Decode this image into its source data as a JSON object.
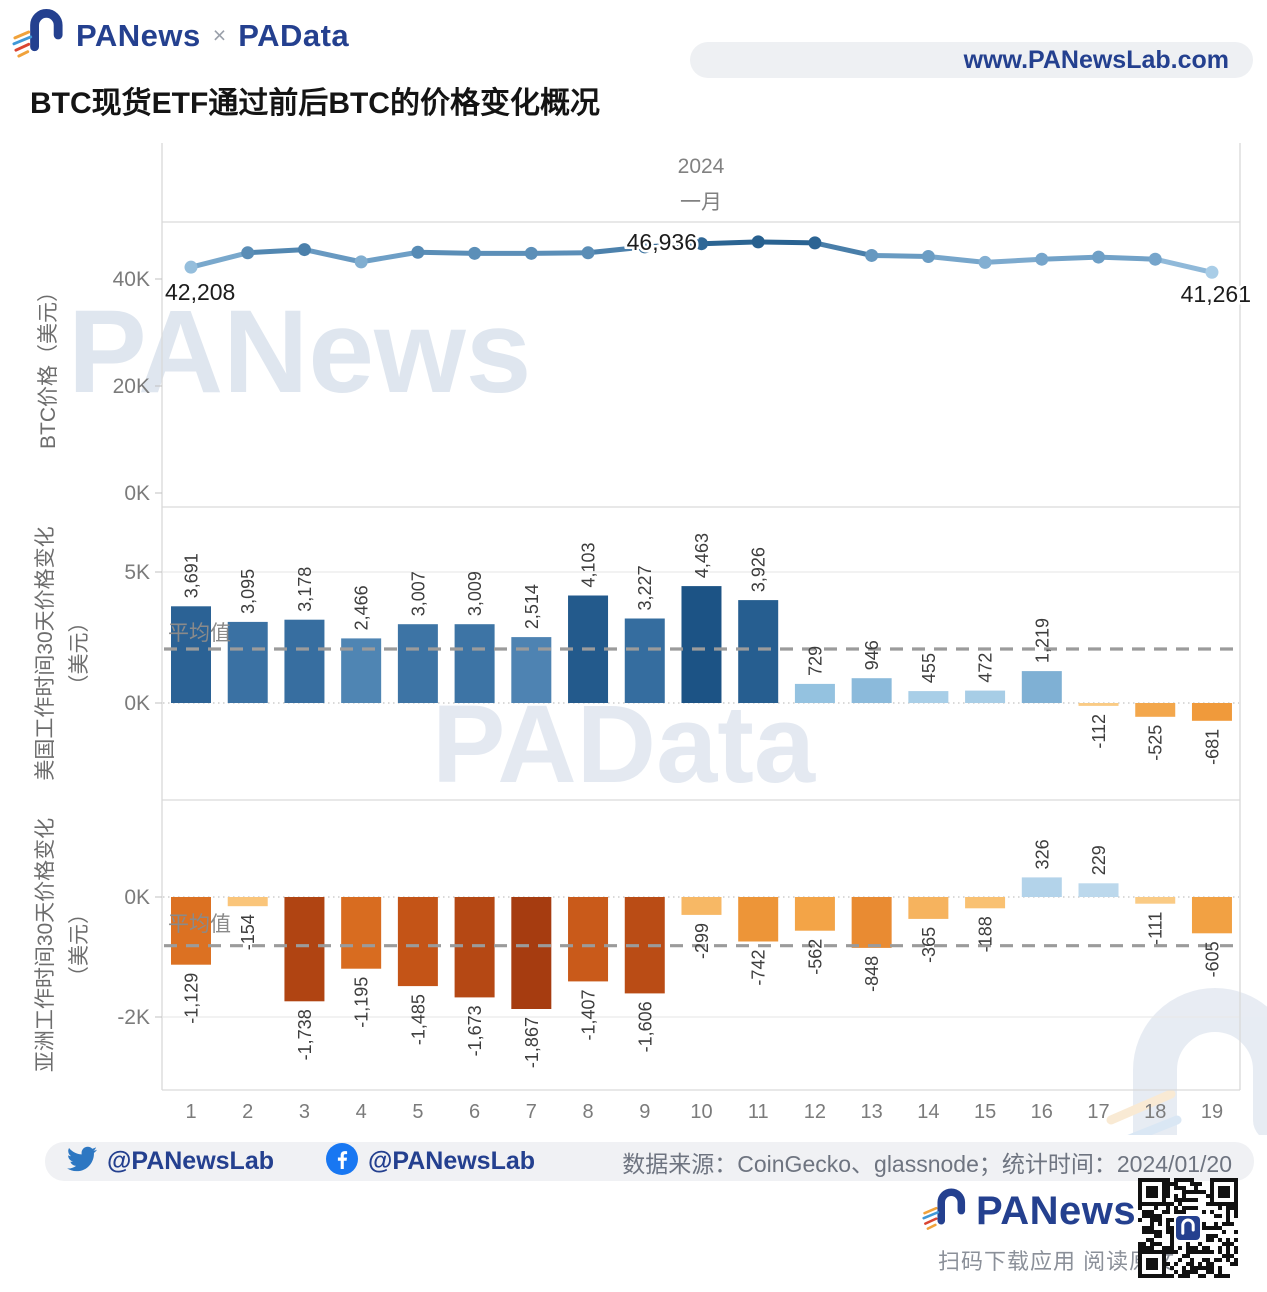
{
  "header": {
    "logo_text": "PANews",
    "logo_separator": "×",
    "logo_partner": "PAData",
    "site_url": "www.PANewsLab.com",
    "title": "BTC现货ETF通过前后BTC的价格变化概况"
  },
  "chart_data": [
    {
      "id": "btc-price",
      "type": "line",
      "title": "2024",
      "subtitle": "一月",
      "ylabel": "BTC价格（美元）",
      "x": [
        1,
        2,
        3,
        4,
        5,
        6,
        7,
        8,
        9,
        10,
        11,
        12,
        13,
        14,
        15,
        16,
        17,
        18,
        19
      ],
      "values": [
        42208,
        44900,
        45500,
        43200,
        45000,
        44800,
        44800,
        44900,
        46000,
        46600,
        46936,
        46750,
        44400,
        44200,
        43100,
        43700,
        44100,
        43700,
        41261
      ],
      "point_labels": [
        {
          "index": 0,
          "text": "42,208"
        },
        {
          "index": 10,
          "text": "46,936"
        },
        {
          "index": 18,
          "text": "41,261"
        }
      ],
      "yticks": [
        {
          "label": "40K",
          "value": 40000
        },
        {
          "label": "20K",
          "value": 20000
        },
        {
          "label": "0K",
          "value": 0
        }
      ],
      "ylim": [
        0,
        46936
      ],
      "grid": false
    },
    {
      "id": "us-change",
      "type": "bar",
      "ylabel": "美国工作时间30天价格变化",
      "ylabel_sub": "（美元）",
      "categories": [
        1,
        2,
        3,
        4,
        5,
        6,
        7,
        8,
        9,
        10,
        11,
        12,
        13,
        14,
        15,
        16,
        17,
        18,
        19
      ],
      "values": [
        3691,
        3095,
        3178,
        2466,
        3007,
        3009,
        2514,
        4103,
        3227,
        4463,
        3926,
        729,
        946,
        455,
        472,
        1219,
        -112,
        -525,
        -681
      ],
      "mean_label": "平均值",
      "mean": 2062,
      "yticks": [
        {
          "label": "5K",
          "value": 5000
        },
        {
          "label": "0K",
          "value": 0
        }
      ],
      "ylim": [
        -1200,
        5200
      ],
      "grid": true
    },
    {
      "id": "asia-change",
      "type": "bar",
      "ylabel": "亚洲工作时间30天价格变化",
      "ylabel_sub": "（美元）",
      "categories": [
        1,
        2,
        3,
        4,
        5,
        6,
        7,
        8,
        9,
        10,
        11,
        12,
        13,
        14,
        15,
        16,
        17,
        18,
        19
      ],
      "values": [
        -1129,
        -154,
        -1738,
        -1195,
        -1485,
        -1673,
        -1867,
        -1407,
        -1606,
        -299,
        -742,
        -562,
        -848,
        -365,
        -188,
        326,
        229,
        -111,
        -605
      ],
      "mean_label": "平均值",
      "mean": -812,
      "yticks": [
        {
          "label": "0K",
          "value": 0
        },
        {
          "label": "-2K",
          "value": -2000
        }
      ],
      "ylim": [
        -3200,
        600
      ],
      "grid": true
    }
  ],
  "x_axis": {
    "categories": [
      "1",
      "2",
      "3",
      "4",
      "5",
      "6",
      "7",
      "8",
      "9",
      "10",
      "11",
      "12",
      "13",
      "14",
      "15",
      "16",
      "17",
      "18",
      "19"
    ]
  },
  "footer": {
    "twitter_handle": "@PANewsLab",
    "facebook_handle": "@PANewsLab",
    "source_text": "数据来源：CoinGecko、glassnode；统计时间：2024/01/20",
    "brand": "PANews",
    "scan_text": "扫码下载应用 阅读原文"
  },
  "watermarks": {
    "top": "PANews",
    "middle": "PAData"
  },
  "colors": {
    "brand_navy": "#24408f",
    "twitter_blue": "#2d77c2",
    "facebook_blue": "#1877f2",
    "grid_line": "#d9d9d9",
    "mean_dash": "#9b9b9b",
    "positive_scale": [
      [
        0,
        "#cfe2f1"
      ],
      [
        0.15,
        "#96c4e2"
      ],
      [
        0.45,
        "#5f93bf"
      ],
      [
        0.75,
        "#31699c"
      ],
      [
        1,
        "#1c5385"
      ]
    ],
    "negative_scale": [
      [
        0,
        "#fcd9a2"
      ],
      [
        0.1,
        "#f9c172"
      ],
      [
        0.35,
        "#f19d3d"
      ],
      [
        0.6,
        "#dd7222"
      ],
      [
        0.8,
        "#c35317"
      ],
      [
        1,
        "#a63c10"
      ]
    ],
    "line_scale": [
      [
        0,
        "#a9cde7"
      ],
      [
        0.5,
        "#6e9fc6"
      ],
      [
        1,
        "#27608f"
      ]
    ]
  }
}
